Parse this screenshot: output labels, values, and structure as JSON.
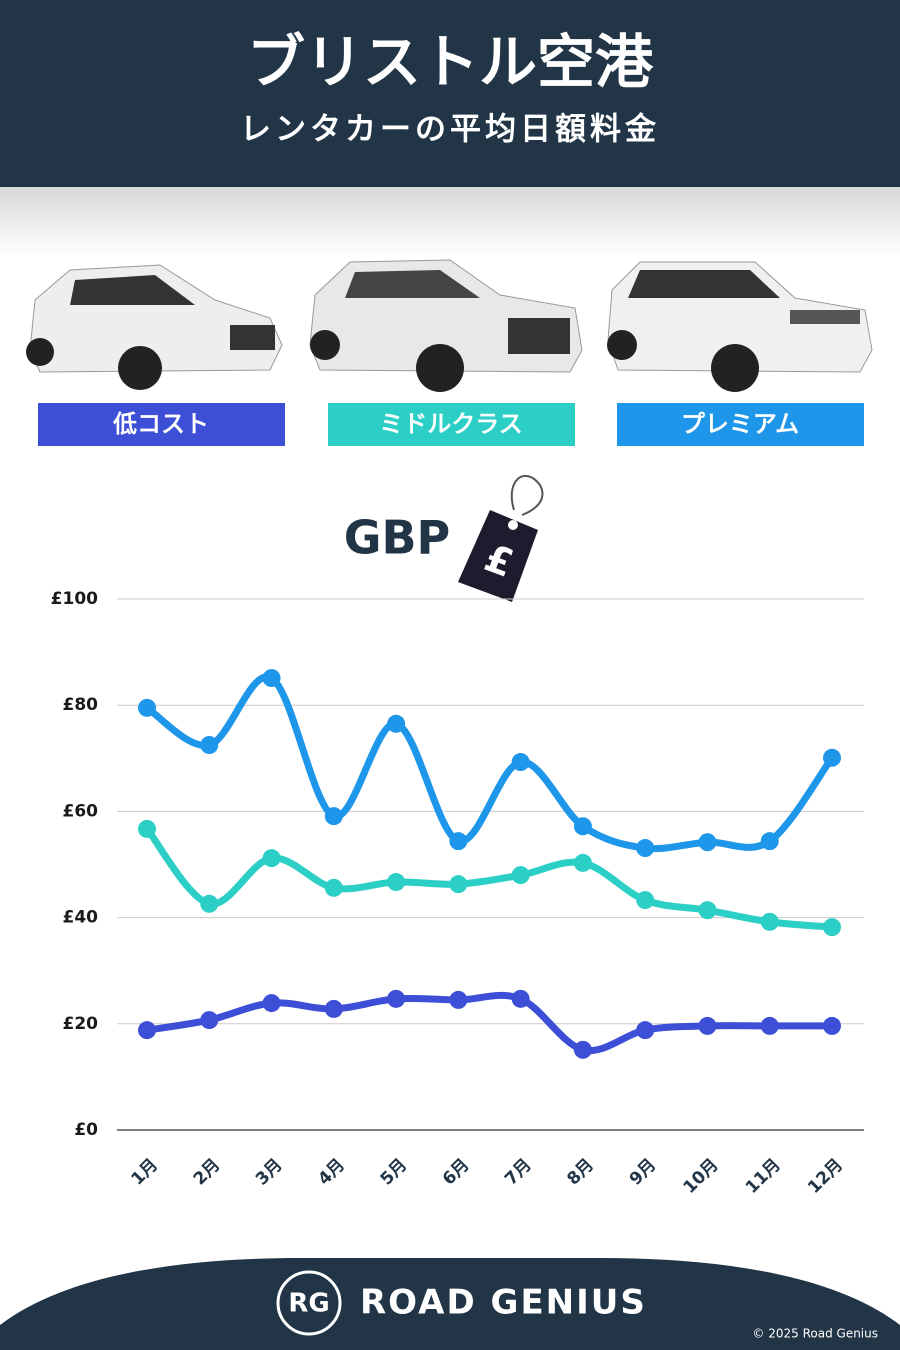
{
  "header": {
    "title": "ブリストル空港",
    "subtitle": "レンタカーの平均日額料金"
  },
  "chart_data": {
    "type": "line",
    "currency_label": "GBP",
    "currency_symbol": "£",
    "categories": [
      "1月",
      "2月",
      "3月",
      "4月",
      "5月",
      "6月",
      "7月",
      "8月",
      "9月",
      "10月",
      "11月",
      "12月"
    ],
    "series": [
      {
        "name": "低コスト",
        "color": "#3d4fd6",
        "values": [
          18.8,
          20.7,
          23.9,
          22.8,
          24.7,
          24.5,
          24.7,
          15.1,
          18.8,
          19.6,
          19.6,
          19.6
        ]
      },
      {
        "name": "ミドルクラス",
        "color": "#2ccfc6",
        "values": [
          56.7,
          42.6,
          51.2,
          45.6,
          46.7,
          46.3,
          48.0,
          50.3,
          43.3,
          41.4,
          39.2,
          38.2
        ]
      },
      {
        "name": "プレミアム",
        "color": "#1e96ea",
        "values": [
          79.5,
          72.5,
          85.1,
          59.1,
          76.5,
          54.4,
          69.3,
          57.2,
          53.1,
          54.2,
          54.4,
          70.1
        ]
      }
    ],
    "ylim": [
      0,
      100
    ],
    "yticks": [
      {
        "value": 0,
        "label": "£0"
      },
      {
        "value": 20,
        "label": "£20"
      },
      {
        "value": 40,
        "label": "£40"
      },
      {
        "value": 60,
        "label": "£60"
      },
      {
        "value": 80,
        "label": "£80"
      },
      {
        "value": 100,
        "label": "£100"
      }
    ],
    "grid": true
  },
  "footer": {
    "logo": "RG",
    "brand": "ROAD GENIUS",
    "copyright": "© 2025 Road Genius"
  }
}
